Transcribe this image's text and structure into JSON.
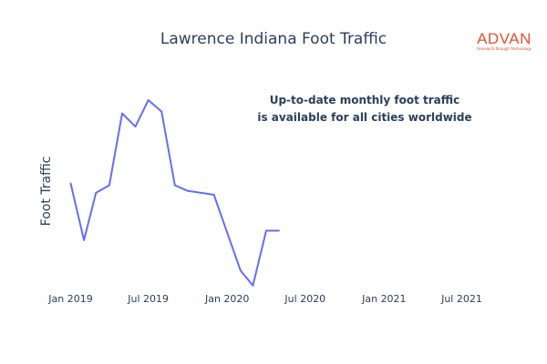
{
  "title": "Lawrence Indiana Foot Traffic",
  "logo": {
    "name": "ADVAN",
    "tagline": "Research through Technology",
    "color": "#e0542f"
  },
  "annotation": {
    "line1": "Up-to-date monthly foot traffic",
    "line2": "is available for all cities worldwide"
  },
  "chart_data": {
    "type": "line",
    "title": "Lawrence Indiana Foot Traffic",
    "xlabel": "",
    "ylabel": "Foot Traffic",
    "x_ticks": [
      "Jan 2019",
      "Jul 2019",
      "Jan 2020",
      "Jul 2020",
      "Jan 2021",
      "Jul 2021"
    ],
    "x_range": [
      "2018-12-16",
      "2021-08-20"
    ],
    "y_range_relative": [
      0,
      1
    ],
    "y_tick_labels_shown": false,
    "grid": false,
    "legend": "none",
    "line_color": "#636efa",
    "series": [
      {
        "x": [
          "2019-01-01",
          "2019-02-01",
          "2019-03-01",
          "2019-04-01",
          "2019-05-01",
          "2019-06-01",
          "2019-07-01",
          "2019-08-01",
          "2019-09-01",
          "2019-10-01",
          "2019-11-01",
          "2019-12-01",
          "2020-01-01",
          "2020-02-01",
          "2020-03-01",
          "2020-04-01",
          "2020-05-01"
        ],
        "values": [
          0.56,
          0.26,
          0.51,
          0.55,
          0.93,
          0.86,
          1.0,
          0.94,
          0.55,
          0.52,
          0.51,
          0.5,
          0.3,
          0.1,
          0.02,
          0.31,
          0.31
        ]
      }
    ]
  }
}
